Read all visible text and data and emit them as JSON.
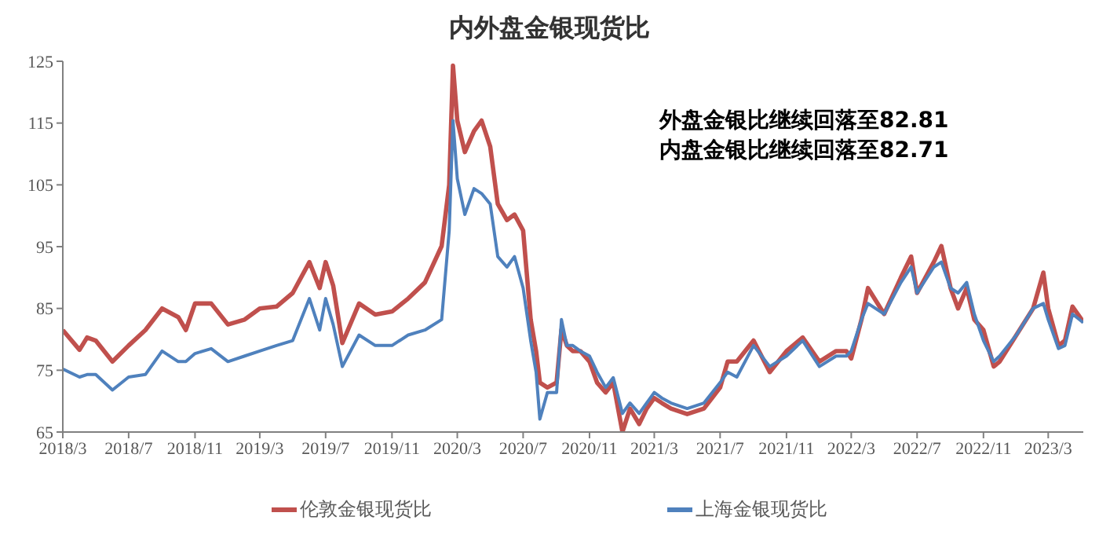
{
  "chart_data": {
    "type": "line",
    "title": "内外盘金银现货比",
    "annotations": [
      "外盘金银比继续回落至82.81",
      "内盘金银比继续回落至82.71"
    ],
    "x": [
      "2018-03-01",
      "2018-04-01",
      "2018-04-15",
      "2018-05-01",
      "2018-06-01",
      "2018-07-01",
      "2018-08-01",
      "2018-09-01",
      "2018-10-01",
      "2018-10-15",
      "2018-11-01",
      "2018-12-01",
      "2019-01-01",
      "2019-02-01",
      "2019-03-01",
      "2019-04-01",
      "2019-05-01",
      "2019-06-01",
      "2019-06-20",
      "2019-07-01",
      "2019-07-15",
      "2019-08-01",
      "2019-09-01",
      "2019-10-01",
      "2019-11-01",
      "2019-12-01",
      "2020-01-01",
      "2020-02-01",
      "2020-02-15",
      "2020-02-22",
      "2020-03-01",
      "2020-03-15",
      "2020-04-01",
      "2020-04-15",
      "2020-05-01",
      "2020-05-15",
      "2020-06-01",
      "2020-06-15",
      "2020-07-01",
      "2020-07-15",
      "2020-07-25",
      "2020-08-01",
      "2020-08-15",
      "2020-09-01",
      "2020-09-10",
      "2020-09-20",
      "2020-10-01",
      "2020-10-15",
      "2020-11-01",
      "2020-11-15",
      "2020-12-01",
      "2020-12-15",
      "2021-01-01",
      "2021-01-15",
      "2021-02-01",
      "2021-02-15",
      "2021-03-01",
      "2021-03-15",
      "2021-04-01",
      "2021-05-01",
      "2021-06-01",
      "2021-07-01",
      "2021-07-15",
      "2021-08-01",
      "2021-09-01",
      "2021-10-01",
      "2021-11-01",
      "2021-12-01",
      "2022-01-01",
      "2022-02-01",
      "2022-02-20",
      "2022-03-01",
      "2022-03-20",
      "2022-04-01",
      "2022-05-01",
      "2022-06-01",
      "2022-06-20",
      "2022-07-01",
      "2022-08-01",
      "2022-08-15",
      "2022-09-01",
      "2022-09-15",
      "2022-10-01",
      "2022-10-15",
      "2022-11-01",
      "2022-11-20",
      "2022-12-01",
      "2023-01-01",
      "2023-02-01",
      "2023-02-20",
      "2023-03-01",
      "2023-03-20",
      "2023-04-01",
      "2023-04-15",
      "2023-05-05"
    ],
    "series": [
      {
        "name": "伦敦金银现货比",
        "color": "#c0504d",
        "values": [
          81.5,
          78.3,
          80.3,
          79.8,
          76.4,
          79,
          81.5,
          85,
          83.6,
          81.5,
          85.8,
          85.8,
          82.4,
          83.2,
          85,
          85.3,
          87.5,
          92.5,
          88.3,
          92.5,
          88.7,
          79.4,
          85.8,
          84,
          84.5,
          86.6,
          89.2,
          95.1,
          105,
          124.3,
          115.4,
          110.3,
          113.7,
          115.4,
          111.2,
          101.9,
          99.3,
          100.2,
          97.6,
          83.2,
          78.1,
          73,
          72.2,
          73,
          81.6,
          79,
          78.1,
          78.1,
          76.4,
          73,
          71.4,
          73,
          65,
          68.8,
          66.3,
          68.8,
          70.5,
          69.7,
          68.8,
          67.9,
          68.8,
          72.2,
          76.4,
          76.4,
          79.8,
          74.7,
          78.1,
          80.3,
          76.4,
          78.1,
          78.1,
          76.9,
          83.2,
          88.3,
          84.1,
          90,
          93.4,
          87.5,
          92.5,
          95.1,
          88.3,
          85,
          88.3,
          83.2,
          81.5,
          75.6,
          76.4,
          80.7,
          85,
          90.8,
          85,
          79,
          79.8,
          85.3,
          82.8
        ]
      },
      {
        "name": "上海金银现货比",
        "color": "#4f81bd",
        "values": [
          75.2,
          73.9,
          74.3,
          74.3,
          71.8,
          73.9,
          74.3,
          78.1,
          76.4,
          76.4,
          77.7,
          78.5,
          76.4,
          77.3,
          78.1,
          79,
          79.8,
          86.6,
          81.5,
          86.6,
          82.4,
          75.6,
          80.7,
          79,
          79,
          80.7,
          81.5,
          83.2,
          97.6,
          115.4,
          106,
          100.2,
          104.4,
          103.6,
          101.9,
          93.4,
          91.7,
          93.4,
          88.3,
          79.8,
          74.7,
          67.1,
          71.4,
          71.4,
          83.2,
          79,
          79,
          78.1,
          77.3,
          74.7,
          72.2,
          73.8,
          68,
          69.7,
          68,
          69.7,
          71.4,
          70.5,
          69.7,
          68.8,
          69.7,
          73,
          74.7,
          73.9,
          79,
          75.6,
          77.3,
          79.8,
          75.6,
          77.3,
          77.3,
          78.1,
          83.2,
          85.8,
          84.1,
          89.2,
          91.7,
          87.5,
          91.7,
          92.5,
          88.3,
          87.5,
          89.2,
          84.1,
          79.8,
          76.4,
          77.3,
          80.7,
          85,
          85.8,
          83.2,
          78.5,
          79,
          84.1,
          82.7
        ]
      }
    ],
    "xlim": [
      "2018-03-01",
      "2023-05-05"
    ],
    "xticks": [
      {
        "value": "2018-03",
        "label": "2018/3"
      },
      {
        "value": "2018-07",
        "label": "2018/7"
      },
      {
        "value": "2018-11",
        "label": "2018/11"
      },
      {
        "value": "2019-03",
        "label": "2019/3"
      },
      {
        "value": "2019-07",
        "label": "2019/7"
      },
      {
        "value": "2019-11",
        "label": "2019/11"
      },
      {
        "value": "2020-03",
        "label": "2020/3"
      },
      {
        "value": "2020-07",
        "label": "2020/7"
      },
      {
        "value": "2020-11",
        "label": "2020/11"
      },
      {
        "value": "2021-03",
        "label": "2021/3"
      },
      {
        "value": "2021-07",
        "label": "2021/7"
      },
      {
        "value": "2021-11",
        "label": "2021/11"
      },
      {
        "value": "2022-03",
        "label": "2022/3"
      },
      {
        "value": "2022-07",
        "label": "2022/7"
      },
      {
        "value": "2022-11",
        "label": "2022/11"
      },
      {
        "value": "2023-03",
        "label": "2023/3"
      }
    ],
    "ylim": [
      65,
      125
    ],
    "yticks": [
      65,
      75,
      85,
      95,
      105,
      115,
      125
    ],
    "grid": false,
    "legend": "bottom",
    "marker": "none",
    "line_style": "solid"
  }
}
